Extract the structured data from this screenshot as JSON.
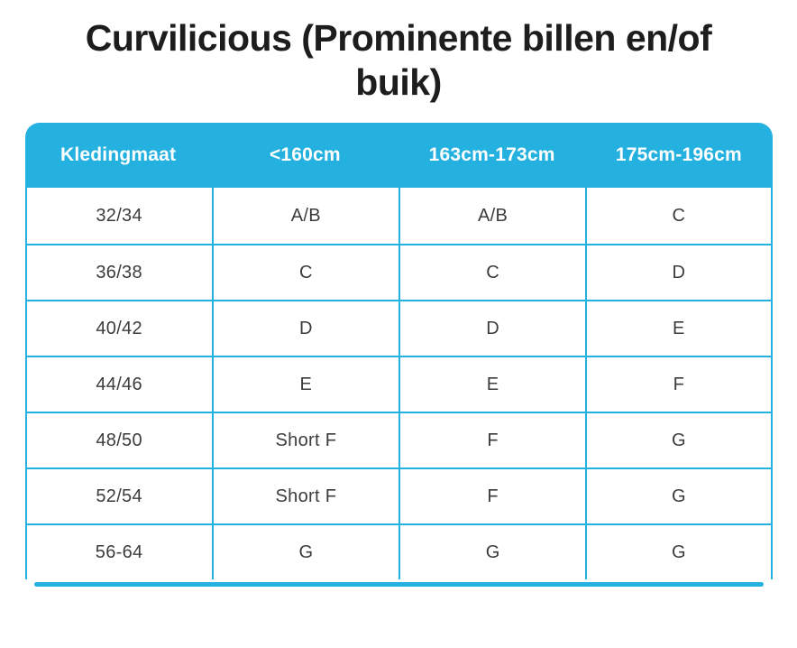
{
  "title": {
    "line1": "Curvilicious (Prominente billen en/of",
    "line2": "buik)"
  },
  "chart_data": {
    "type": "table",
    "title": "Curvilicious (Prominente billen en/of buik)",
    "columns": [
      "Kledingmaat",
      "<160cm",
      "163cm-173cm",
      "175cm-196cm"
    ],
    "rows": [
      [
        "32/34",
        "A/B",
        "A/B",
        "C"
      ],
      [
        "36/38",
        "C",
        "C",
        "D"
      ],
      [
        "40/42",
        "D",
        "D",
        "E"
      ],
      [
        "44/46",
        "E",
        "E",
        "F"
      ],
      [
        "48/50",
        "Short F",
        "F",
        "G"
      ],
      [
        "52/54",
        "Short F",
        "F",
        "G"
      ],
      [
        "56-64",
        "G",
        "G",
        "G"
      ]
    ]
  },
  "colors": {
    "accent": "#24b1e0",
    "title_text": "#1d1d1d",
    "cell_text": "#3c3c3c",
    "header_text": "#ffffff",
    "background": "#ffffff"
  }
}
